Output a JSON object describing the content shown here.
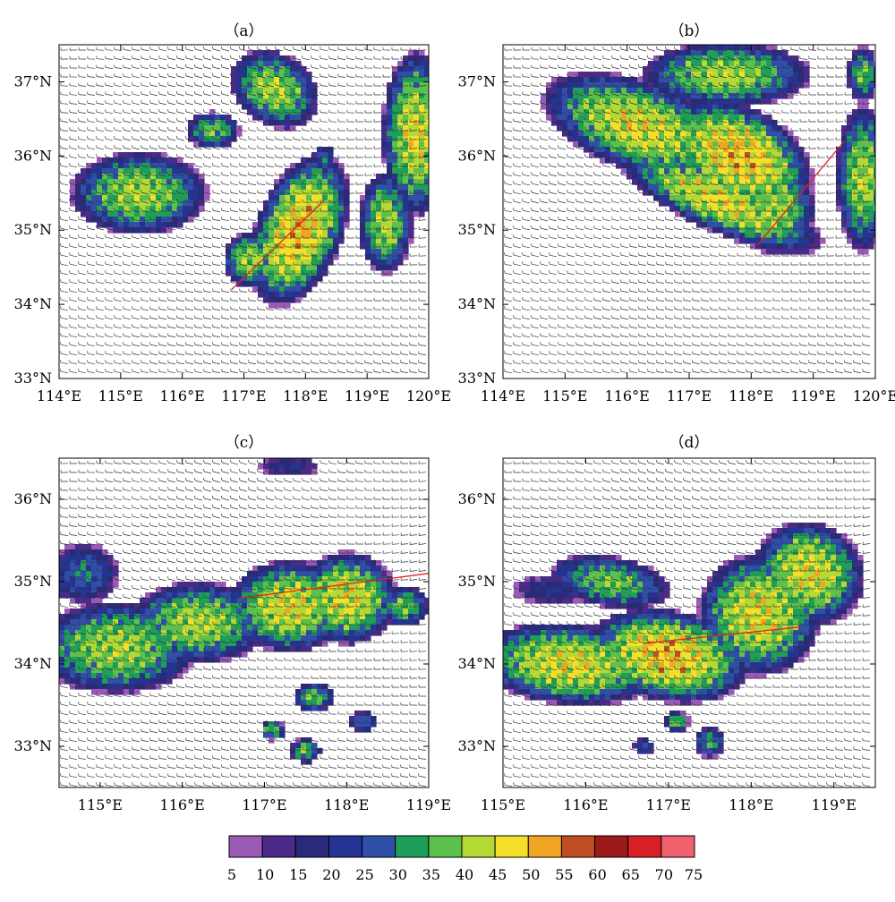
{
  "chart_data": [
    {
      "type": "heatmap",
      "panel_label": "（a）",
      "xticks": [
        "114°E",
        "115°E",
        "116°E",
        "117°E",
        "118°E",
        "119°E",
        "120°E"
      ],
      "yticks": [
        "33°N",
        "34°N",
        "35°N",
        "36°N",
        "37°N"
      ],
      "xlim": [
        114.0,
        120.0
      ],
      "ylim": [
        33.0,
        37.5
      ],
      "wind": "westerly",
      "echo_cells": [
        {
          "lon": 115.3,
          "lat": 35.5,
          "rx": 0.9,
          "ry": 0.45,
          "peak": 45,
          "tilt": 0
        },
        {
          "lon": 116.5,
          "lat": 36.35,
          "rx": 0.35,
          "ry": 0.2,
          "peak": 40,
          "tilt": 0
        },
        {
          "lon": 117.5,
          "lat": 36.9,
          "rx": 0.6,
          "ry": 0.4,
          "peak": 45,
          "tilt": -20
        },
        {
          "lon": 117.9,
          "lat": 35.0,
          "rx": 0.55,
          "ry": 0.9,
          "peak": 55,
          "tilt": -30
        },
        {
          "lon": 117.1,
          "lat": 34.6,
          "rx": 0.35,
          "ry": 0.3,
          "peak": 45,
          "tilt": 0
        },
        {
          "lon": 119.3,
          "lat": 35.1,
          "rx": 0.35,
          "ry": 0.55,
          "peak": 45,
          "tilt": 0
        },
        {
          "lon": 119.8,
          "lat": 36.3,
          "rx": 0.45,
          "ry": 0.9,
          "peak": 50,
          "tilt": 0
        },
        {
          "lon": 118.3,
          "lat": 36.0,
          "rx": 0.15,
          "ry": 0.12,
          "peak": 30,
          "tilt": 0
        }
      ],
      "red_line": {
        "lon1": 116.8,
        "lat1": 34.2,
        "lon2": 118.3,
        "lat2": 35.4
      }
    },
    {
      "type": "heatmap",
      "panel_label": "（b）",
      "xticks": [
        "114°E",
        "115°E",
        "116°E",
        "117°E",
        "118°E",
        "119°E",
        "120°E"
      ],
      "yticks": [
        "33°N",
        "34°N",
        "35°N",
        "36°N",
        "37°N"
      ],
      "xlim": [
        114.0,
        120.0
      ],
      "ylim": [
        33.0,
        37.5
      ],
      "wind": "westerly",
      "echo_cells": [
        {
          "lon": 116.2,
          "lat": 36.4,
          "rx": 1.3,
          "ry": 0.5,
          "peak": 50,
          "tilt": -15
        },
        {
          "lon": 117.8,
          "lat": 36.0,
          "rx": 1.0,
          "ry": 0.55,
          "peak": 55,
          "tilt": -20
        },
        {
          "lon": 117.5,
          "lat": 35.4,
          "rx": 1.4,
          "ry": 0.35,
          "peak": 50,
          "tilt": -20
        },
        {
          "lon": 118.4,
          "lat": 35.3,
          "rx": 0.5,
          "ry": 0.5,
          "peak": 45,
          "tilt": 0
        },
        {
          "lon": 117.6,
          "lat": 37.1,
          "rx": 1.1,
          "ry": 0.35,
          "peak": 45,
          "tilt": 0
        },
        {
          "lon": 119.8,
          "lat": 35.7,
          "rx": 0.35,
          "ry": 0.8,
          "peak": 45,
          "tilt": 0
        },
        {
          "lon": 119.8,
          "lat": 37.1,
          "rx": 0.2,
          "ry": 0.3,
          "peak": 40,
          "tilt": 0
        }
      ],
      "red_line": {
        "lon1": 118.1,
        "lat1": 34.8,
        "lon2": 119.5,
        "lat2": 36.2
      }
    },
    {
      "type": "heatmap",
      "panel_label": "（c）",
      "xticks": [
        "115°E",
        "116°E",
        "117°E",
        "118°E",
        "119°E"
      ],
      "yticks": [
        "33°N",
        "34°N",
        "35°N",
        "36°N"
      ],
      "xlim": [
        114.5,
        119.0
      ],
      "ylim": [
        32.5,
        36.5
      ],
      "wind": "westerly",
      "echo_cells": [
        {
          "lon": 115.2,
          "lat": 34.2,
          "rx": 0.8,
          "ry": 0.45,
          "peak": 45,
          "tilt": 0
        },
        {
          "lon": 116.2,
          "lat": 34.5,
          "rx": 0.7,
          "ry": 0.4,
          "peak": 45,
          "tilt": 0
        },
        {
          "lon": 117.3,
          "lat": 34.7,
          "rx": 0.6,
          "ry": 0.45,
          "peak": 50,
          "tilt": 0
        },
        {
          "lon": 118.0,
          "lat": 34.8,
          "rx": 0.5,
          "ry": 0.45,
          "peak": 50,
          "tilt": 0
        },
        {
          "lon": 114.8,
          "lat": 35.1,
          "rx": 0.35,
          "ry": 0.3,
          "peak": 30,
          "tilt": 0
        },
        {
          "lon": 117.6,
          "lat": 33.6,
          "rx": 0.2,
          "ry": 0.15,
          "peak": 40,
          "tilt": 0
        },
        {
          "lon": 117.5,
          "lat": 32.95,
          "rx": 0.15,
          "ry": 0.12,
          "peak": 40,
          "tilt": 0
        },
        {
          "lon": 117.1,
          "lat": 33.2,
          "rx": 0.12,
          "ry": 0.1,
          "peak": 40,
          "tilt": 0
        },
        {
          "lon": 118.2,
          "lat": 33.3,
          "rx": 0.15,
          "ry": 0.1,
          "peak": 30,
          "tilt": 0
        },
        {
          "lon": 118.7,
          "lat": 34.7,
          "rx": 0.25,
          "ry": 0.2,
          "peak": 40,
          "tilt": 0
        },
        {
          "lon": 117.3,
          "lat": 36.4,
          "rx": 0.3,
          "ry": 0.1,
          "peak": 20,
          "tilt": 0
        }
      ],
      "red_line": {
        "lon1": 116.7,
        "lat1": 34.8,
        "lon2": 119.0,
        "lat2": 35.1
      }
    },
    {
      "type": "heatmap",
      "panel_label": "（d）",
      "xticks": [
        "115°E",
        "116°E",
        "117°E",
        "118°E",
        "119°E"
      ],
      "yticks": [
        "33°N",
        "34°N",
        "35°N",
        "36°N"
      ],
      "xlim": [
        115.0,
        119.5
      ],
      "ylim": [
        32.5,
        36.5
      ],
      "wind": "westerly",
      "echo_cells": [
        {
          "lon": 115.8,
          "lat": 34.0,
          "rx": 0.9,
          "ry": 0.4,
          "peak": 50,
          "tilt": -5
        },
        {
          "lon": 117.0,
          "lat": 34.1,
          "rx": 0.8,
          "ry": 0.45,
          "peak": 55,
          "tilt": -10
        },
        {
          "lon": 118.1,
          "lat": 34.6,
          "rx": 0.6,
          "ry": 0.6,
          "peak": 50,
          "tilt": -20
        },
        {
          "lon": 118.7,
          "lat": 35.1,
          "rx": 0.55,
          "ry": 0.5,
          "peak": 50,
          "tilt": -25
        },
        {
          "lon": 116.3,
          "lat": 35.0,
          "rx": 0.6,
          "ry": 0.25,
          "peak": 40,
          "tilt": -10
        },
        {
          "lon": 115.6,
          "lat": 34.9,
          "rx": 0.4,
          "ry": 0.15,
          "peak": 20,
          "tilt": 0
        },
        {
          "lon": 117.5,
          "lat": 33.05,
          "rx": 0.15,
          "ry": 0.15,
          "peak": 35,
          "tilt": 0
        },
        {
          "lon": 117.1,
          "lat": 33.3,
          "rx": 0.12,
          "ry": 0.1,
          "peak": 40,
          "tilt": 0
        },
        {
          "lon": 116.7,
          "lat": 33.0,
          "rx": 0.1,
          "ry": 0.08,
          "peak": 30,
          "tilt": 0
        }
      ],
      "red_line": {
        "lon1": 116.7,
        "lat1": 34.25,
        "lon2": 118.6,
        "lat2": 34.45
      }
    }
  ],
  "colorbar": {
    "labels": [
      "5",
      "10",
      "15",
      "20",
      "25",
      "30",
      "35",
      "40",
      "45",
      "50",
      "55",
      "60",
      "65",
      "70",
      "75"
    ],
    "colors": [
      "#9b59b6",
      "#4b2a8a",
      "#2a2a7a",
      "#253494",
      "#2f4fa8",
      "#1f9e5a",
      "#5cc04c",
      "#b4d935",
      "#f5df2a",
      "#f0a524",
      "#c04e25",
      "#9c1a1a",
      "#d91f26",
      "#f0616e"
    ]
  }
}
